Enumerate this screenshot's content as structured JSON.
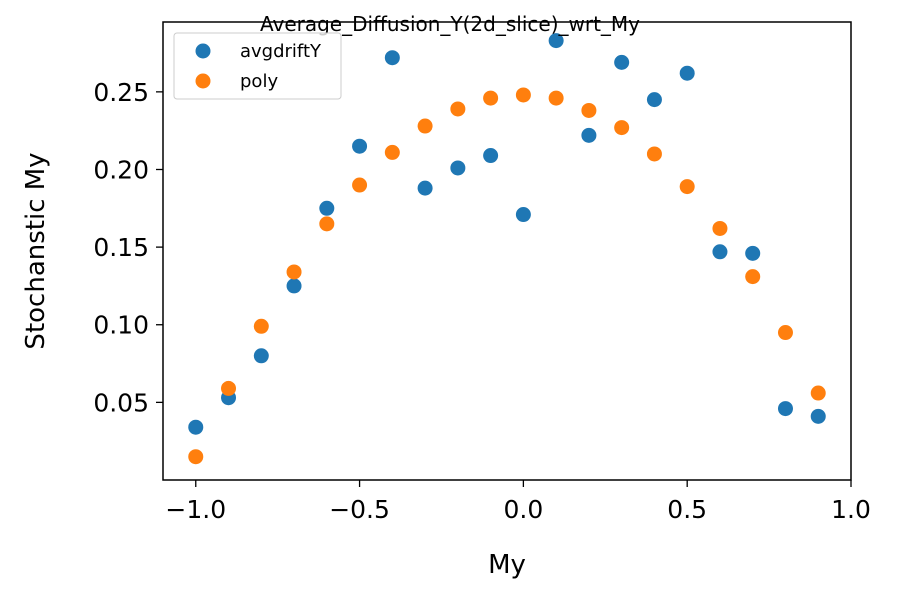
{
  "chart_data": {
    "type": "scatter",
    "title": "Average_Diffusion_Y(2d_slice)_wrt_My",
    "xlabel": "My",
    "ylabel": "Stochanstic My",
    "xlim": [
      -1.1,
      1.0
    ],
    "ylim": [
      0.0,
      0.295
    ],
    "grid": false,
    "legend_position": "top-left",
    "x_ticks": [
      -1.0,
      -0.5,
      0.0,
      0.5,
      1.0
    ],
    "x_tick_labels": [
      "−1.0",
      "−0.5",
      "0.0",
      "0.5",
      "1.0"
    ],
    "y_ticks": [
      0.05,
      0.1,
      0.15,
      0.2,
      0.25
    ],
    "y_tick_labels": [
      "0.05",
      "0.10",
      "0.15",
      "0.20",
      "0.25"
    ],
    "series": [
      {
        "name": "avgdriftY",
        "color": "#1f77b4",
        "x": [
          -1.0,
          -0.9,
          -0.8,
          -0.7,
          -0.6,
          -0.5,
          -0.4,
          -0.3,
          -0.2,
          -0.1,
          0.0,
          0.1,
          0.2,
          0.3,
          0.4,
          0.5,
          0.6,
          0.7,
          0.8,
          0.9
        ],
        "y": [
          0.034,
          0.053,
          0.08,
          0.125,
          0.175,
          0.215,
          0.272,
          0.188,
          0.201,
          0.209,
          0.171,
          0.283,
          0.222,
          0.269,
          0.245,
          0.262,
          0.147,
          0.146,
          0.046,
          0.041
        ]
      },
      {
        "name": "poly",
        "color": "#ff7f0e",
        "x": [
          -1.0,
          -0.9,
          -0.8,
          -0.7,
          -0.6,
          -0.5,
          -0.4,
          -0.3,
          -0.2,
          -0.1,
          0.0,
          0.1,
          0.2,
          0.3,
          0.4,
          0.5,
          0.6,
          0.7,
          0.8,
          0.9
        ],
        "y": [
          0.015,
          0.059,
          0.099,
          0.134,
          0.165,
          0.19,
          0.211,
          0.228,
          0.239,
          0.246,
          0.248,
          0.246,
          0.238,
          0.227,
          0.21,
          0.189,
          0.162,
          0.131,
          0.095,
          0.056
        ]
      }
    ]
  }
}
